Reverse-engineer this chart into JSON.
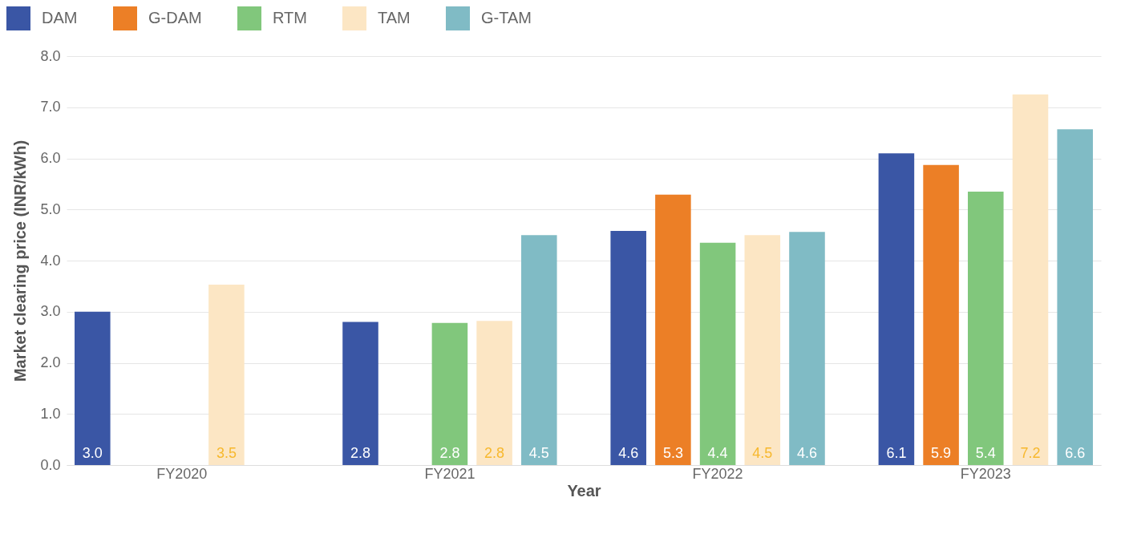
{
  "chart_data": {
    "type": "bar",
    "xlabel": "Year",
    "ylabel": "Market clearing price (INR/kWh)",
    "categories": [
      "FY2020",
      "FY2021",
      "FY2022",
      "FY2023"
    ],
    "series": [
      {
        "name": "DAM",
        "color": "#3a56a5",
        "values": [
          3.0,
          2.8,
          4.58,
          6.1
        ],
        "value_labels": [
          "3.0",
          "2.8",
          "4.6",
          "6.1"
        ]
      },
      {
        "name": "G-DAM",
        "color": "#ec7f26",
        "values": [
          null,
          null,
          5.29,
          5.87
        ],
        "value_labels": [
          null,
          null,
          "5.3",
          "5.9"
        ]
      },
      {
        "name": "RTM",
        "color": "#81c77c",
        "values": [
          null,
          2.78,
          4.35,
          5.35
        ],
        "value_labels": [
          null,
          "2.8",
          "4.4",
          "5.4"
        ]
      },
      {
        "name": "TAM",
        "color": "#fce6c4",
        "values": [
          3.53,
          2.82,
          4.5,
          7.25
        ],
        "value_labels": [
          "3.5",
          "2.8",
          "4.5",
          "7.2"
        ]
      },
      {
        "name": "G-TAM",
        "color": "#80bbc5",
        "values": [
          null,
          4.5,
          4.56,
          6.57
        ],
        "value_labels": [
          null,
          "4.5",
          "4.6",
          "6.6"
        ]
      }
    ],
    "ylim": [
      0,
      8
    ],
    "yticks": [
      {
        "value": 0,
        "label": "0.0"
      },
      {
        "value": 1,
        "label": "1.0"
      },
      {
        "value": 2,
        "label": "2.0"
      },
      {
        "value": 3,
        "label": "3.0"
      },
      {
        "value": 4,
        "label": "4.0"
      },
      {
        "value": 5,
        "label": "5.0"
      },
      {
        "value": 6,
        "label": "6.0"
      },
      {
        "value": 7,
        "label": "7.0"
      },
      {
        "value": 8,
        "label": "8.0"
      }
    ],
    "grid": "y",
    "legend": "top left"
  }
}
